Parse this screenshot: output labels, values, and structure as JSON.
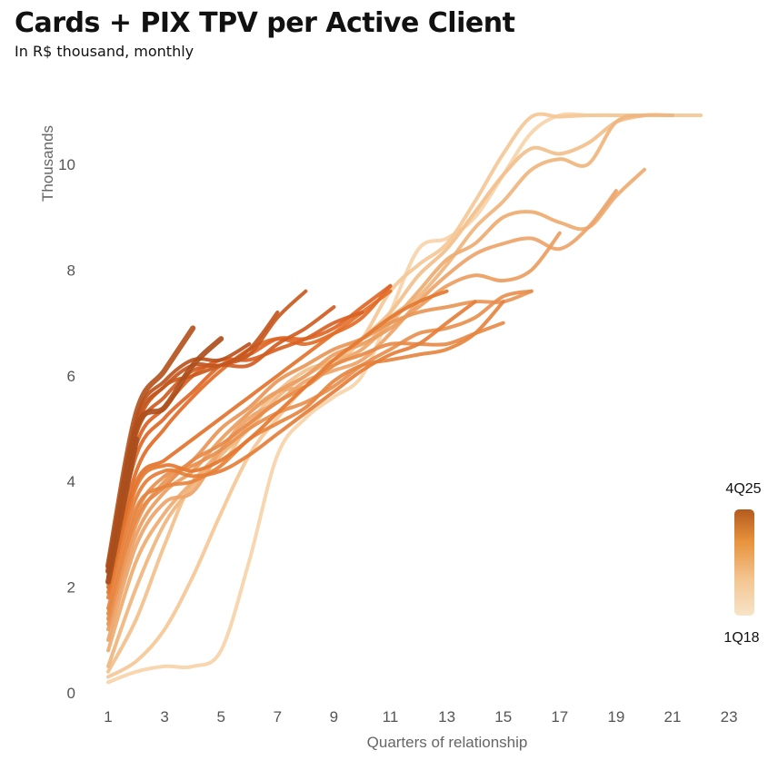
{
  "chart_data": {
    "type": "line",
    "title": "Cards + PIX TPV per Active Client",
    "subtitle": "In R$ thousand, monthly",
    "xlabel": "Quarters of relationship",
    "ylabel": "Thousands",
    "xlim": [
      0.5,
      23.5
    ],
    "ylim": [
      0,
      11
    ],
    "x_ticks": [
      "1",
      "3",
      "5",
      "7",
      "9",
      "11",
      "13",
      "15",
      "17",
      "19",
      "21",
      "23"
    ],
    "y_ticks": [
      "0",
      "2",
      "4",
      "6",
      "8",
      "10"
    ],
    "grid": false,
    "legend": {
      "type": "colorbar",
      "top_label": "4Q25",
      "bottom_label": "1Q18",
      "colors": [
        "#f7e4c8",
        "#f3c48f",
        "#e8923c",
        "#c7691e",
        "#a0511c"
      ]
    },
    "series": [
      {
        "color": "#f7d2a8",
        "values": [
          0.2,
          0.4,
          0.5,
          0.5,
          0.8,
          2.5,
          4.5,
          5.2,
          5.6,
          6.0,
          7.2,
          8.4,
          8.6,
          9.0,
          9.8,
          10.6,
          11.0,
          11.0,
          11.0,
          11.0,
          11.0
        ]
      },
      {
        "color": "#f5c896",
        "values": [
          0.3,
          0.6,
          1.2,
          2.2,
          3.4,
          4.5,
          5.2,
          5.8,
          6.2,
          6.7,
          7.6,
          8.1,
          8.5,
          9.3,
          10.2,
          10.9,
          10.9,
          11.0,
          11.0,
          11.0,
          11.0,
          11.0
        ]
      },
      {
        "color": "#f3c08b",
        "values": [
          0.4,
          1.4,
          2.8,
          4.0,
          4.3,
          5.1,
          5.7,
          6.1,
          6.3,
          6.7,
          7.2,
          7.9,
          8.4,
          9.1,
          9.8,
          10.3,
          10.2,
          10.4,
          10.8,
          11.0
        ]
      },
      {
        "color": "#f0b57e",
        "values": [
          0.5,
          2.0,
          3.2,
          3.9,
          4.5,
          5.0,
          5.6,
          6.0,
          6.3,
          6.5,
          7.1,
          7.5,
          8.1,
          8.8,
          9.3,
          9.9,
          10.1,
          10.0,
          10.8,
          11.0,
          11.0
        ]
      },
      {
        "color": "#eeab70",
        "values": [
          0.8,
          2.5,
          3.4,
          4.0,
          4.6,
          5.3,
          5.7,
          5.8,
          6.2,
          6.5,
          7.0,
          7.6,
          8.2,
          8.5,
          9.0,
          9.1,
          8.9,
          8.8,
          9.4,
          9.9
        ]
      },
      {
        "color": "#eda46a",
        "values": [
          1.0,
          2.8,
          3.6,
          3.8,
          4.6,
          5.2,
          5.5,
          5.9,
          6.1,
          6.3,
          6.8,
          7.4,
          7.9,
          8.3,
          8.5,
          8.6,
          8.4,
          8.8,
          9.5
        ]
      },
      {
        "color": "#eb9d60",
        "values": [
          1.2,
          3.0,
          3.8,
          4.2,
          4.8,
          5.3,
          5.7,
          6.0,
          6.4,
          6.6,
          6.9,
          7.3,
          7.7,
          7.9,
          7.8,
          8.0,
          8.7
        ]
      },
      {
        "color": "#e99656",
        "values": [
          1.3,
          3.2,
          4.0,
          4.4,
          5.0,
          5.4,
          5.9,
          6.2,
          6.5,
          6.7,
          7.0,
          7.2,
          7.3,
          7.4,
          7.4,
          7.6
        ]
      },
      {
        "color": "#e88f4e",
        "values": [
          1.4,
          3.4,
          4.1,
          4.3,
          4.6,
          5.0,
          5.3,
          5.5,
          5.8,
          6.2,
          6.5,
          6.8,
          6.9,
          7.1,
          7.5,
          7.6
        ]
      },
      {
        "color": "#e78a48",
        "values": [
          1.5,
          3.3,
          3.9,
          4.4,
          4.7,
          5.1,
          5.5,
          5.8,
          6.2,
          6.4,
          6.6,
          6.6,
          6.6,
          6.8,
          7.0
        ]
      },
      {
        "color": "#e6843f",
        "values": [
          1.6,
          3.5,
          3.9,
          4.0,
          4.3,
          4.8,
          5.1,
          5.4,
          5.9,
          6.2,
          6.3,
          6.4,
          6.5,
          6.8,
          7.4
        ]
      },
      {
        "color": "#e57e38",
        "values": [
          1.8,
          3.7,
          4.2,
          4.1,
          4.2,
          4.5,
          4.9,
          5.3,
          5.7,
          6.1,
          6.4,
          6.6,
          7.0,
          7.4
        ]
      },
      {
        "color": "#e47831",
        "values": [
          1.9,
          3.9,
          4.3,
          4.2,
          4.4,
          4.8,
          5.3,
          5.8,
          6.3,
          6.7,
          7.1,
          7.4,
          7.6
        ]
      },
      {
        "color": "#e3722b",
        "values": [
          2.0,
          4.0,
          4.4,
          4.8,
          5.2,
          5.6,
          6.0,
          6.4,
          6.8,
          7.2,
          7.6
        ]
      },
      {
        "color": "#e26c27",
        "values": [
          2.1,
          4.2,
          5.0,
          5.6,
          6.1,
          6.5,
          6.7,
          6.6,
          6.8,
          7.1,
          7.7
        ]
      },
      {
        "color": "#e06626",
        "values": [
          2.2,
          4.5,
          5.2,
          5.7,
          6.2,
          6.4,
          6.7,
          6.7,
          6.9,
          7.3,
          7.7
        ]
      },
      {
        "color": "#d96124",
        "values": [
          2.2,
          4.7,
          5.4,
          6.0,
          6.3,
          6.3,
          6.5,
          6.7,
          7.0,
          7.2
        ]
      },
      {
        "color": "#d05c22",
        "values": [
          2.3,
          4.9,
          5.6,
          6.1,
          6.2,
          6.2,
          6.6,
          6.9,
          7.3
        ]
      },
      {
        "color": "#c95a20",
        "values": [
          2.3,
          5.0,
          5.8,
          6.0,
          6.2,
          6.4,
          7.1,
          7.6
        ]
      },
      {
        "color": "#c3571f",
        "values": [
          2.4,
          5.1,
          5.8,
          6.2,
          6.2,
          6.5,
          7.2
        ]
      },
      {
        "color": "#bc541e",
        "values": [
          2.4,
          5.2,
          5.9,
          6.3,
          6.3,
          6.6
        ]
      },
      {
        "color": "#b5521d",
        "values": [
          2.4,
          5.3,
          6.1,
          6.9
        ]
      },
      {
        "color": "#ad4f1c",
        "values": [
          2.3,
          5.0,
          5.4,
          6.2,
          6.7
        ]
      },
      {
        "color": "#a64e1c",
        "values": [
          2.1,
          4.8
        ]
      }
    ]
  }
}
